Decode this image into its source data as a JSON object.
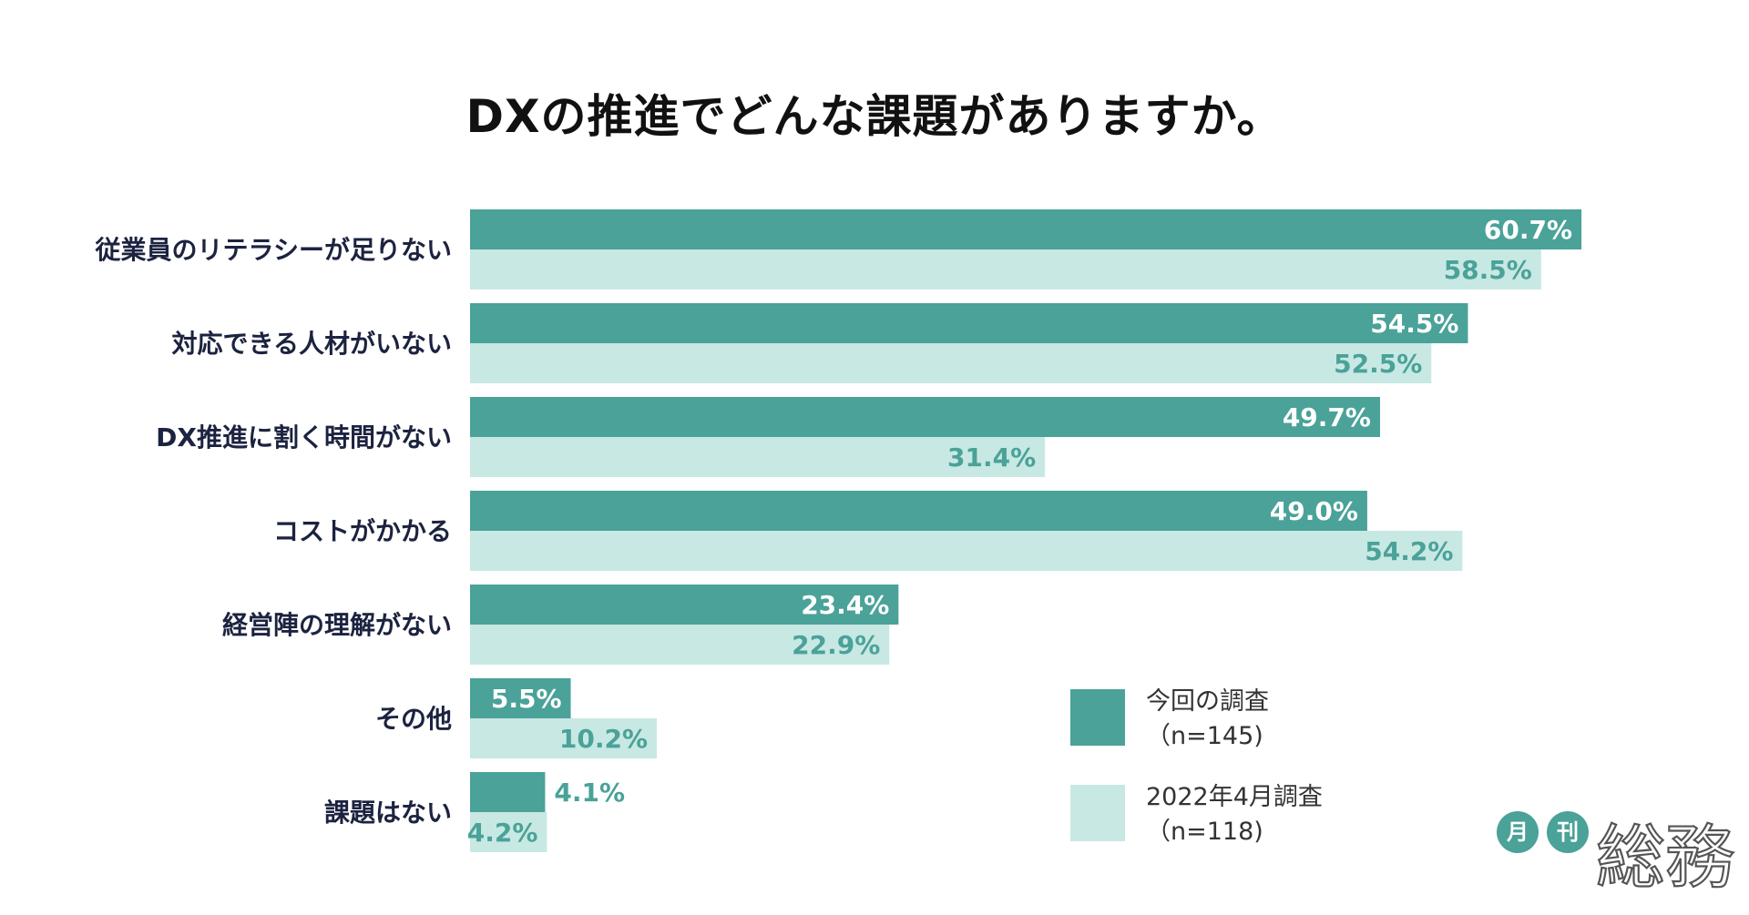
{
  "title": "DXの推進でどんな課題がありますか。",
  "colors": {
    "current": "#4aa298",
    "previous": "#c8e8e3",
    "current_label_inside": "#ffffff",
    "current_label_outside": "#4aa298",
    "previous_label": "#4aa298"
  },
  "chart_data": {
    "type": "bar",
    "orientation": "horizontal",
    "title": "DXの推進でどんな課題がありますか。",
    "xlim": [
      0,
      100
    ],
    "categories": [
      "従業員のリテラシーが足りない",
      "対応できる人材がいない",
      "DX推進に割く時間がない",
      "コストがかかる",
      "経営陣の理解がない",
      "その他",
      "課題はない"
    ],
    "series": [
      {
        "name": "今回の調査（n=145)",
        "values": [
          60.7,
          54.5,
          49.7,
          49.0,
          23.4,
          5.5,
          4.1
        ],
        "labels": [
          "60.7%",
          "54.5%",
          "49.7%",
          "49.0%",
          "23.4%",
          "5.5%",
          "4.1%"
        ]
      },
      {
        "name": "2022年4月調査（n=118)",
        "values": [
          58.5,
          52.5,
          31.4,
          54.2,
          22.9,
          10.2,
          4.2
        ],
        "labels": [
          "58.5%",
          "52.5%",
          "31.4%",
          "54.2%",
          "22.9%",
          "10.2%",
          "4.2%"
        ]
      }
    ],
    "grid": false,
    "legend_position": "bottom-right"
  },
  "legend": [
    {
      "line1": "今回の調査",
      "line2": "（n=145)"
    },
    {
      "line1": "2022年4月調査",
      "line2": "（n=118)"
    }
  ],
  "logo": {
    "badge1": "月",
    "badge2": "刊",
    "name": "総務"
  }
}
